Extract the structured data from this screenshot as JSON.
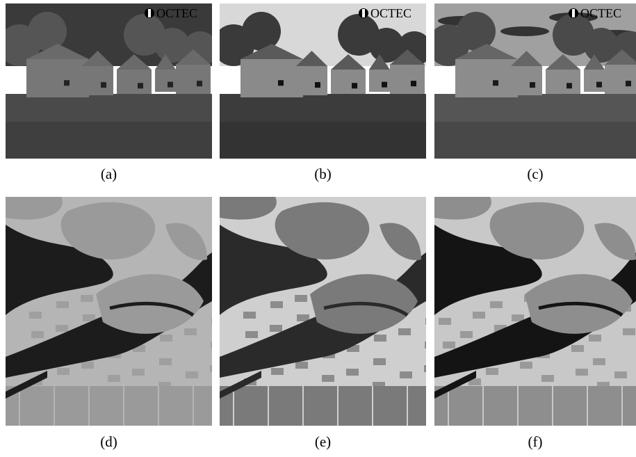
{
  "panels": [
    {
      "caption": "(a)",
      "watermark": "OCTEC"
    },
    {
      "caption": "(b)",
      "watermark": "OCTEC"
    },
    {
      "caption": "(c)",
      "watermark": "OCTEC"
    },
    {
      "caption": "(d)"
    },
    {
      "caption": "(e)"
    },
    {
      "caption": "(f)"
    }
  ]
}
